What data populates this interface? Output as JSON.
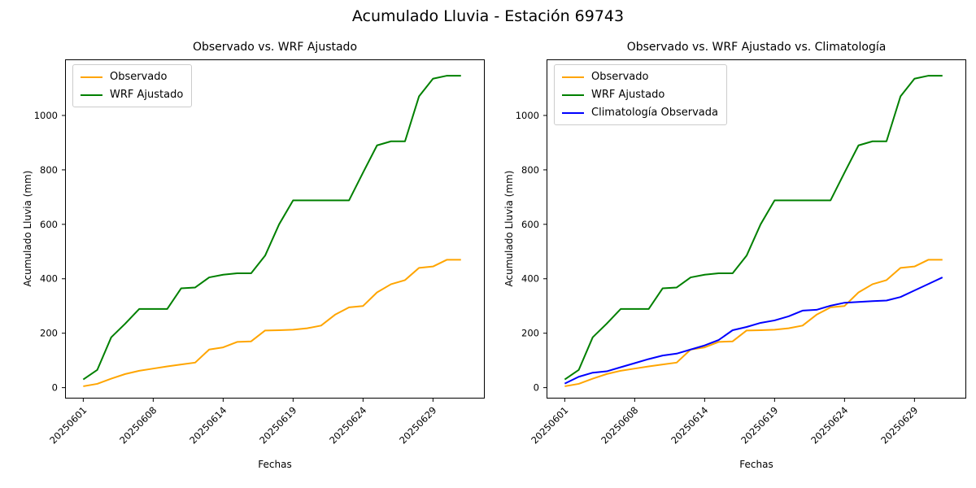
{
  "figure": {
    "suptitle": "Acumulado Lluvia - Estación 69743"
  },
  "chart_data": [
    {
      "type": "line",
      "title": "Observado vs. WRF Ajustado",
      "xlabel": "Fechas",
      "ylabel": "Acumulado Lluvia (mm)",
      "x_tick_labels": [
        "20250601",
        "20250608",
        "20250614",
        "20250619",
        "20250624",
        "20250629"
      ],
      "x_tick_indices": [
        0,
        5,
        10,
        15,
        20,
        25
      ],
      "y_ticks": [
        0,
        200,
        400,
        600,
        800,
        1000
      ],
      "xlim": [
        -1.3,
        28.7
      ],
      "ylim": [
        -40,
        1206
      ],
      "grid": false,
      "legend_position": "upper left",
      "series": [
        {
          "name": "Observado",
          "color": "#FFA500",
          "values": [
            5,
            14,
            33,
            50,
            62,
            70,
            78,
            85,
            92,
            140,
            148,
            168,
            170,
            210,
            211,
            213,
            218,
            228,
            268,
            295,
            300,
            350,
            380,
            395,
            440,
            445,
            470,
            470
          ]
        },
        {
          "name": "WRF Ajustado",
          "color": "#008000",
          "values": [
            30,
            65,
            185,
            235,
            289,
            289,
            289,
            365,
            368,
            405,
            415,
            420,
            420,
            485,
            600,
            688,
            688,
            688,
            688,
            688,
            790,
            890,
            905,
            905,
            1070,
            1135,
            1146,
            1146
          ]
        }
      ]
    },
    {
      "type": "line",
      "title": "Observado vs. WRF Ajustado vs. Climatología",
      "xlabel": "Fechas",
      "ylabel": "Acumulado Lluvia (mm)",
      "x_tick_labels": [
        "20250601",
        "20250608",
        "20250614",
        "20250619",
        "20250624",
        "20250629"
      ],
      "x_tick_indices": [
        0,
        5,
        10,
        15,
        20,
        25
      ],
      "y_ticks": [
        0,
        200,
        400,
        600,
        800,
        1000
      ],
      "xlim": [
        -1.3,
        28.7
      ],
      "ylim": [
        -40,
        1206
      ],
      "grid": false,
      "legend_position": "upper left",
      "series": [
        {
          "name": "Observado",
          "color": "#FFA500",
          "values": [
            5,
            14,
            33,
            50,
            62,
            70,
            78,
            85,
            92,
            140,
            148,
            168,
            170,
            210,
            211,
            213,
            218,
            228,
            268,
            295,
            300,
            350,
            380,
            395,
            440,
            445,
            470,
            470
          ]
        },
        {
          "name": "WRF Ajustado",
          "color": "#008000",
          "values": [
            30,
            65,
            185,
            235,
            289,
            289,
            289,
            365,
            368,
            405,
            415,
            420,
            420,
            485,
            600,
            688,
            688,
            688,
            688,
            688,
            790,
            890,
            905,
            905,
            1070,
            1135,
            1146,
            1146
          ]
        },
        {
          "name": "Climatología Observada",
          "color": "#0000FF",
          "values": [
            15,
            40,
            55,
            60,
            75,
            90,
            105,
            118,
            125,
            140,
            155,
            175,
            211,
            223,
            238,
            247,
            262,
            283,
            286,
            301,
            312,
            315,
            318,
            320,
            333,
            357,
            381,
            405
          ]
        }
      ]
    }
  ]
}
